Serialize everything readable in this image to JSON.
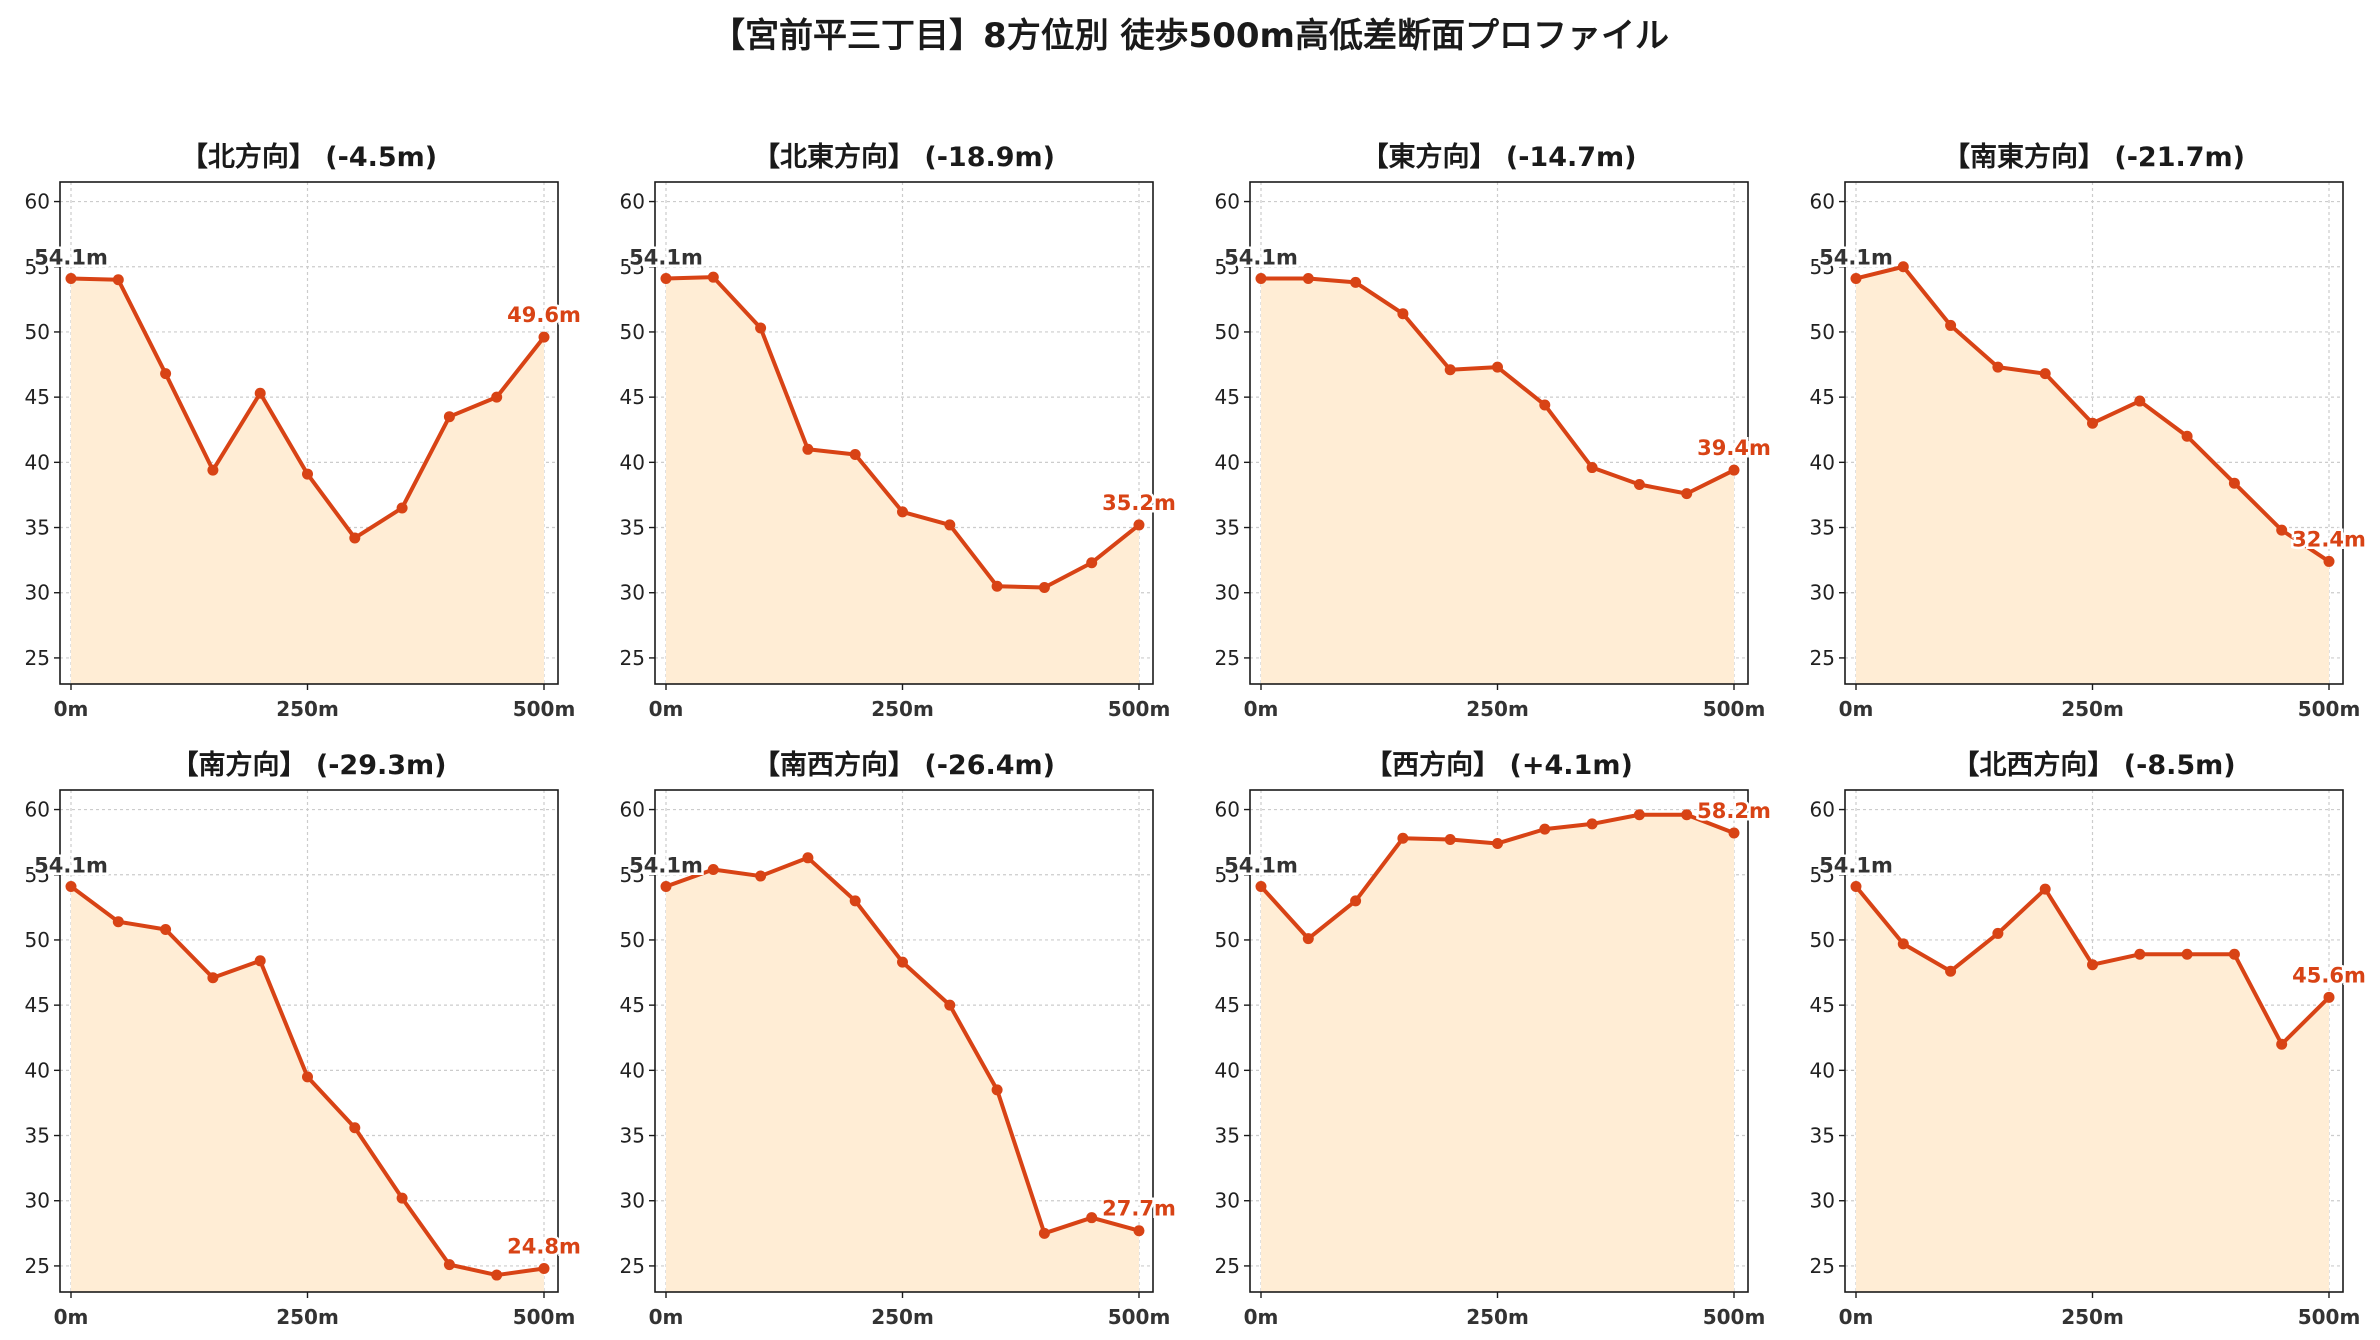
{
  "title": "【宮前平三丁目】8方位別 徒歩500m高低差断面プロファイル",
  "colors": {
    "line": "#d84315",
    "fill": "#ffedd5",
    "start_label": "#333333",
    "end_label": "#d84315",
    "grid": "#cccccc"
  },
  "chart_data": [
    {
      "type": "area",
      "title": "【北方向】 (-4.5m)",
      "x": [
        0,
        50,
        100,
        150,
        200,
        250,
        300,
        350,
        400,
        450,
        500
      ],
      "values": [
        54.1,
        54.0,
        46.8,
        39.4,
        45.3,
        39.1,
        34.2,
        36.5,
        43.5,
        45.0,
        49.6
      ],
      "xticks": [
        "0m",
        "250m",
        "500m"
      ],
      "yticks": [
        25,
        30,
        35,
        40,
        45,
        50,
        55,
        60
      ],
      "ylim": [
        23,
        61.5
      ],
      "start_label": "54.1m",
      "end_label": "49.6m",
      "grid": true
    },
    {
      "type": "area",
      "title": "【北東方向】 (-18.9m)",
      "x": [
        0,
        50,
        100,
        150,
        200,
        250,
        300,
        350,
        400,
        450,
        500
      ],
      "values": [
        54.1,
        54.2,
        50.3,
        41.0,
        40.6,
        36.2,
        35.2,
        30.5,
        30.4,
        32.3,
        35.2
      ],
      "xticks": [
        "0m",
        "250m",
        "500m"
      ],
      "yticks": [
        25,
        30,
        35,
        40,
        45,
        50,
        55,
        60
      ],
      "ylim": [
        23,
        61.5
      ],
      "start_label": "54.1m",
      "end_label": "35.2m",
      "grid": true
    },
    {
      "type": "area",
      "title": "【東方向】 (-14.7m)",
      "x": [
        0,
        50,
        100,
        150,
        200,
        250,
        300,
        350,
        400,
        450,
        500
      ],
      "values": [
        54.1,
        54.1,
        53.8,
        51.4,
        47.1,
        47.3,
        44.4,
        39.6,
        38.3,
        37.6,
        39.4
      ],
      "xticks": [
        "0m",
        "250m",
        "500m"
      ],
      "yticks": [
        25,
        30,
        35,
        40,
        45,
        50,
        55,
        60
      ],
      "ylim": [
        23,
        61.5
      ],
      "start_label": "54.1m",
      "end_label": "39.4m",
      "grid": true
    },
    {
      "type": "area",
      "title": "【南東方向】 (-21.7m)",
      "x": [
        0,
        50,
        100,
        150,
        200,
        250,
        300,
        350,
        400,
        450,
        500
      ],
      "values": [
        54.1,
        55.0,
        50.5,
        47.3,
        46.8,
        43.0,
        44.7,
        42.0,
        38.4,
        34.8,
        32.4
      ],
      "xticks": [
        "0m",
        "250m",
        "500m"
      ],
      "yticks": [
        25,
        30,
        35,
        40,
        45,
        50,
        55,
        60
      ],
      "ylim": [
        23,
        61.5
      ],
      "start_label": "54.1m",
      "end_label": "32.4m",
      "grid": true
    },
    {
      "type": "area",
      "title": "【南方向】 (-29.3m)",
      "x": [
        0,
        50,
        100,
        150,
        200,
        250,
        300,
        350,
        400,
        450,
        500
      ],
      "values": [
        54.1,
        51.4,
        50.8,
        47.1,
        48.4,
        39.5,
        35.6,
        30.2,
        25.1,
        24.3,
        24.8
      ],
      "xticks": [
        "0m",
        "250m",
        "500m"
      ],
      "yticks": [
        25,
        30,
        35,
        40,
        45,
        50,
        55,
        60
      ],
      "ylim": [
        23,
        61.5
      ],
      "start_label": "54.1m",
      "end_label": "24.8m",
      "grid": true
    },
    {
      "type": "area",
      "title": "【南西方向】 (-26.4m)",
      "x": [
        0,
        50,
        100,
        150,
        200,
        250,
        300,
        350,
        400,
        450,
        500
      ],
      "values": [
        54.1,
        55.4,
        54.9,
        56.3,
        53.0,
        48.3,
        45.0,
        38.5,
        27.5,
        28.7,
        27.7
      ],
      "xticks": [
        "0m",
        "250m",
        "500m"
      ],
      "yticks": [
        25,
        30,
        35,
        40,
        45,
        50,
        55,
        60
      ],
      "ylim": [
        23,
        61.5
      ],
      "start_label": "54.1m",
      "end_label": "27.7m",
      "grid": true
    },
    {
      "type": "area",
      "title": "【西方向】 (+4.1m)",
      "x": [
        0,
        50,
        100,
        150,
        200,
        250,
        300,
        350,
        400,
        450,
        500
      ],
      "values": [
        54.1,
        50.1,
        53.0,
        57.8,
        57.7,
        57.4,
        58.5,
        58.9,
        59.6,
        59.6,
        58.2
      ],
      "xticks": [
        "0m",
        "250m",
        "500m"
      ],
      "yticks": [
        25,
        30,
        35,
        40,
        45,
        50,
        55,
        60
      ],
      "ylim": [
        23,
        61.5
      ],
      "start_label": "54.1m",
      "end_label": "58.2m",
      "grid": true
    },
    {
      "type": "area",
      "title": "【北西方向】 (-8.5m)",
      "x": [
        0,
        50,
        100,
        150,
        200,
        250,
        300,
        350,
        400,
        450,
        500
      ],
      "values": [
        54.1,
        49.7,
        47.6,
        50.5,
        53.9,
        48.1,
        48.9,
        48.9,
        48.9,
        42.0,
        45.6
      ],
      "xticks": [
        "0m",
        "250m",
        "500m"
      ],
      "yticks": [
        25,
        30,
        35,
        40,
        45,
        50,
        55,
        60
      ],
      "ylim": [
        23,
        61.5
      ],
      "start_label": "54.1m",
      "end_label": "45.6m",
      "grid": true
    }
  ]
}
